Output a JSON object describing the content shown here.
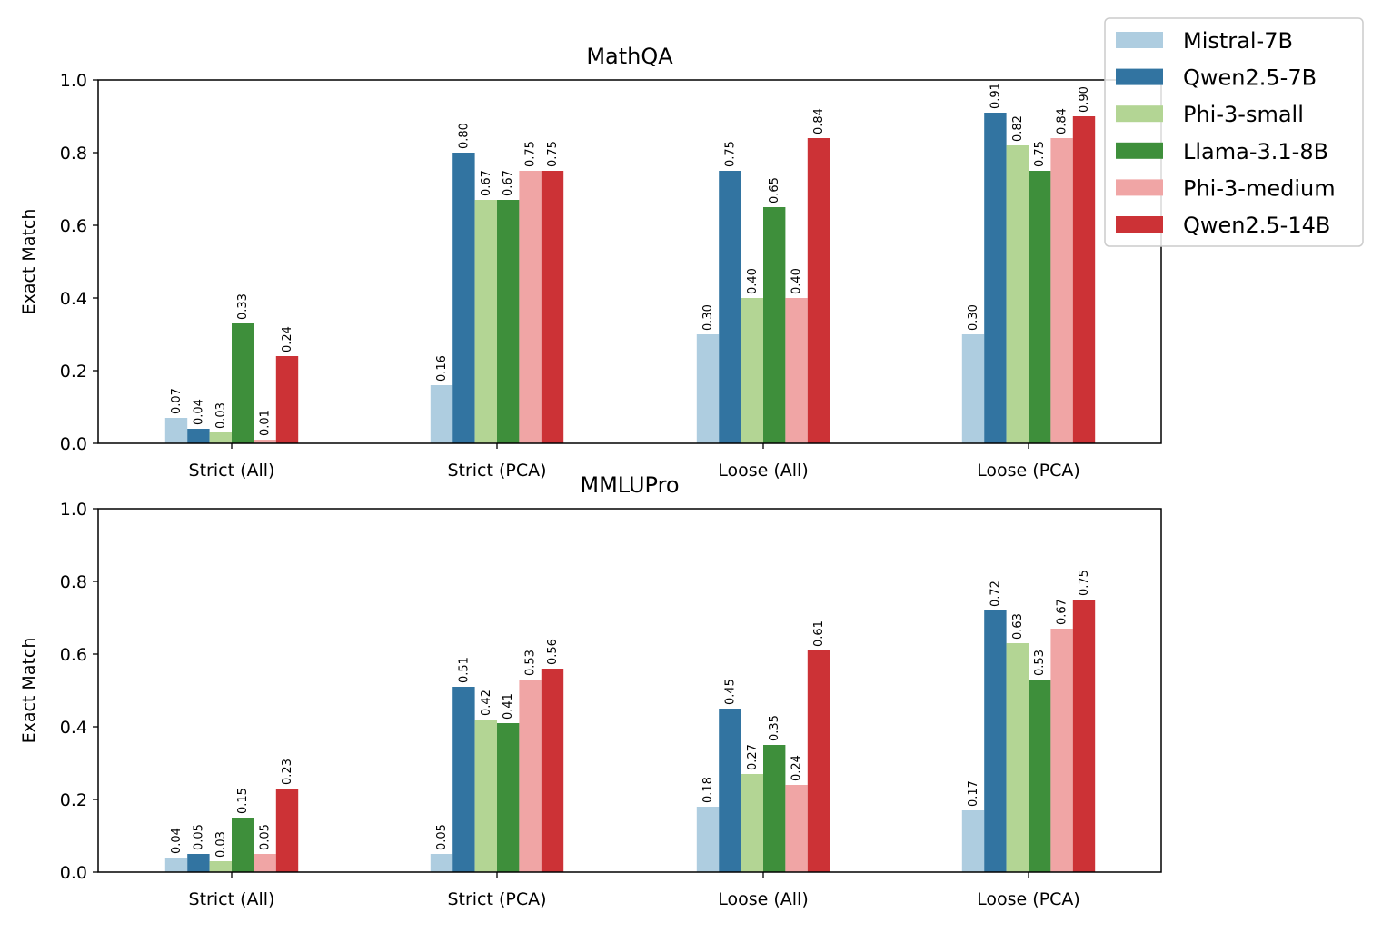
{
  "chart_data": [
    {
      "type": "bar",
      "title": "MathQA",
      "ylabel": "Exact Match",
      "xlabel": "",
      "ylim": [
        0,
        1.0
      ],
      "yticks": [
        "0.0",
        "0.2",
        "0.4",
        "0.6",
        "0.8",
        "1.0"
      ],
      "categories": [
        "Strict (All)",
        "Strict (PCA)",
        "Loose (All)",
        "Loose (PCA)"
      ],
      "series": [
        {
          "name": "Mistral-7B",
          "color": "#aecde0",
          "values": [
            0.07,
            0.16,
            0.3,
            0.3
          ],
          "labels": [
            "0.07",
            "0.16",
            "0.30",
            "0.30"
          ]
        },
        {
          "name": "Qwen2.5-7B",
          "color": "#3274a1",
          "values": [
            0.04,
            0.8,
            0.75,
            0.91
          ],
          "labels": [
            "0.04",
            "0.80",
            "0.75",
            "0.91"
          ]
        },
        {
          "name": "Phi-3-small",
          "color": "#b3d594",
          "values": [
            0.03,
            0.67,
            0.4,
            0.82
          ],
          "labels": [
            "0.03",
            "0.67",
            "0.40",
            "0.82"
          ]
        },
        {
          "name": "Llama-3.1-8B",
          "color": "#3e8f3b",
          "values": [
            0.33,
            0.67,
            0.65,
            0.75
          ],
          "labels": [
            "0.33",
            "0.67",
            "0.65",
            "0.75"
          ]
        },
        {
          "name": "Phi-3-medium",
          "color": "#f0a5a5",
          "values": [
            0.01,
            0.75,
            0.4,
            0.84
          ],
          "labels": [
            "0.01",
            "0.75",
            "0.40",
            "0.84"
          ]
        },
        {
          "name": "Qwen2.5-14B",
          "color": "#cc3236",
          "values": [
            0.24,
            0.75,
            0.84,
            0.9
          ],
          "labels": [
            "0.24",
            "0.75",
            "0.84",
            "0.90"
          ]
        }
      ]
    },
    {
      "type": "bar",
      "title": "MMLUPro",
      "ylabel": "Exact Match",
      "xlabel": "",
      "ylim": [
        0,
        1.0
      ],
      "yticks": [
        "0.0",
        "0.2",
        "0.4",
        "0.6",
        "0.8",
        "1.0"
      ],
      "categories": [
        "Strict (All)",
        "Strict (PCA)",
        "Loose (All)",
        "Loose (PCA)"
      ],
      "series": [
        {
          "name": "Mistral-7B",
          "color": "#aecde0",
          "values": [
            0.04,
            0.05,
            0.18,
            0.17
          ],
          "labels": [
            "0.04",
            "0.05",
            "0.18",
            "0.17"
          ]
        },
        {
          "name": "Qwen2.5-7B",
          "color": "#3274a1",
          "values": [
            0.05,
            0.51,
            0.45,
            0.72
          ],
          "labels": [
            "0.05",
            "0.51",
            "0.45",
            "0.72"
          ]
        },
        {
          "name": "Phi-3-small",
          "color": "#b3d594",
          "values": [
            0.03,
            0.42,
            0.27,
            0.63
          ],
          "labels": [
            "0.03",
            "0.42",
            "0.27",
            "0.63"
          ]
        },
        {
          "name": "Llama-3.1-8B",
          "color": "#3e8f3b",
          "values": [
            0.15,
            0.41,
            0.35,
            0.53
          ],
          "labels": [
            "0.15",
            "0.41",
            "0.35",
            "0.53"
          ]
        },
        {
          "name": "Phi-3-medium",
          "color": "#f0a5a5",
          "values": [
            0.05,
            0.53,
            0.24,
            0.67
          ],
          "labels": [
            "0.05",
            "0.53",
            "0.24",
            "0.67"
          ]
        },
        {
          "name": "Qwen2.5-14B",
          "color": "#cc3236",
          "values": [
            0.23,
            0.56,
            0.61,
            0.75
          ],
          "labels": [
            "0.23",
            "0.56",
            "0.61",
            "0.75"
          ]
        }
      ]
    }
  ],
  "legend": {
    "placement": "top-right",
    "items": [
      {
        "label": "Mistral-7B",
        "color": "#aecde0"
      },
      {
        "label": "Qwen2.5-7B",
        "color": "#3274a1"
      },
      {
        "label": "Phi-3-small",
        "color": "#b3d594"
      },
      {
        "label": "Llama-3.1-8B",
        "color": "#3e8f3b"
      },
      {
        "label": "Phi-3-medium",
        "color": "#f0a5a5"
      },
      {
        "label": "Qwen2.5-14B",
        "color": "#cc3236"
      }
    ]
  }
}
